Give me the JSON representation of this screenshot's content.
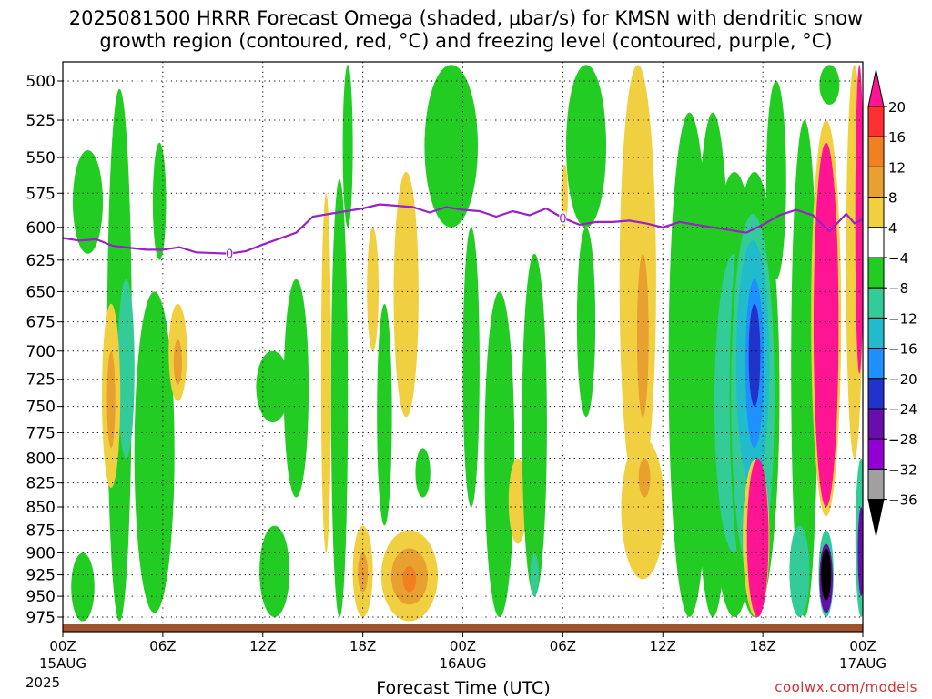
{
  "header": {
    "title_line1": "2025081500 HRRR Forecast Omega (shaded, μbar/s) for KMSN with dendritic snow",
    "title_line2": "growth region (contoured, red, °C) and freezing level (contoured, purple, °C)"
  },
  "footer": {
    "xlabel": "Forecast Time (UTC)",
    "credit": "coolwx.com/models",
    "year": "2025"
  },
  "chart_data": {
    "type": "heatmap",
    "title": "2025081500 HRRR Forecast Omega (shaded, μbar/s) for KMSN with dendritic snow growth region (contoured, red, °C) and freezing level (contoured, purple, °C)",
    "xlabel": "Forecast Time (UTC)",
    "ylabel": "",
    "x_unit": "forecast hour",
    "xlim": [
      0,
      48
    ],
    "ylim": [
      985,
      488
    ],
    "y_scale": "log-pressure",
    "grid": true,
    "y_ticks": [
      500,
      525,
      550,
      575,
      600,
      625,
      650,
      675,
      700,
      725,
      750,
      775,
      800,
      825,
      850,
      875,
      900,
      925,
      950,
      975
    ],
    "x_ticks": [
      {
        "hour": 0,
        "label": "00Z",
        "sub": "15AUG"
      },
      {
        "hour": 6,
        "label": "06Z",
        "sub": ""
      },
      {
        "hour": 12,
        "label": "12Z",
        "sub": ""
      },
      {
        "hour": 18,
        "label": "18Z",
        "sub": ""
      },
      {
        "hour": 24,
        "label": "00Z",
        "sub": "16AUG"
      },
      {
        "hour": 30,
        "label": "06Z",
        "sub": ""
      },
      {
        "hour": 36,
        "label": "12Z",
        "sub": ""
      },
      {
        "hour": 42,
        "label": "18Z",
        "sub": ""
      },
      {
        "hour": 48,
        "label": "00Z",
        "sub": "17AUG"
      }
    ],
    "colorbar": {
      "labels": [
        "20",
        "16",
        "12",
        "8",
        "4",
        "−4",
        "−8",
        "−12",
        "−16",
        "−20",
        "−24",
        "−28",
        "−32",
        "−36"
      ],
      "colors": [
        "#ff1493",
        "#ff3030",
        "#f08020",
        "#e8a030",
        "#f0d040",
        "#ffffff",
        "#22cc22",
        "#33cc99",
        "#22bbcc",
        "#1e90ff",
        "#2233cc",
        "#6a0dad",
        "#9400d3",
        "#a0a0a0",
        "#000000"
      ]
    },
    "freezing_level": {
      "color": "#9a20c8",
      "label": "0",
      "points": [
        [
          0,
          608
        ],
        [
          1,
          610
        ],
        [
          2,
          609
        ],
        [
          3,
          614
        ],
        [
          5,
          617
        ],
        [
          6,
          617
        ],
        [
          7,
          615
        ],
        [
          8,
          619
        ],
        [
          10,
          620
        ],
        [
          11,
          618
        ],
        [
          12,
          613
        ],
        [
          14,
          604
        ],
        [
          15,
          592
        ],
        [
          16,
          590
        ],
        [
          17,
          588
        ],
        [
          18,
          586
        ],
        [
          19,
          583
        ],
        [
          20,
          584
        ],
        [
          21,
          585
        ],
        [
          22,
          589
        ],
        [
          23,
          585
        ],
        [
          24,
          587
        ],
        [
          25,
          588
        ],
        [
          26,
          592
        ],
        [
          27,
          588
        ],
        [
          28,
          591
        ],
        [
          29,
          586
        ],
        [
          30,
          593
        ],
        [
          31,
          598
        ],
        [
          32,
          596
        ],
        [
          33,
          596
        ],
        [
          34,
          595
        ],
        [
          35,
          597
        ],
        [
          36,
          600
        ],
        [
          37,
          596
        ],
        [
          38,
          598
        ],
        [
          39,
          600
        ],
        [
          40,
          602
        ],
        [
          41,
          604
        ],
        [
          42,
          598
        ],
        [
          43,
          591
        ],
        [
          44,
          587
        ],
        [
          45,
          591
        ],
        [
          46,
          603
        ],
        [
          47,
          590
        ],
        [
          47.5,
          597
        ],
        [
          48,
          594
        ]
      ],
      "label_hours": [
        10,
        30
      ]
    },
    "shaded_regions": [
      {
        "value": -6,
        "hour": 1.5,
        "p_top": 545,
        "p_bottom": 620,
        "hw": 0.9
      },
      {
        "value": -6,
        "hour": 3.4,
        "p_top": 505,
        "p_bottom": 980,
        "hw": 0.75
      },
      {
        "value": -6,
        "hour": 1.2,
        "p_top": 900,
        "p_bottom": 980,
        "hw": 0.7
      },
      {
        "value": -6,
        "hour": 5.8,
        "p_top": 540,
        "p_bottom": 625,
        "hw": 0.4
      },
      {
        "value": -6,
        "hour": 5.5,
        "p_top": 650,
        "p_bottom": 970,
        "hw": 1.2
      },
      {
        "value": -10,
        "hour": 3.8,
        "p_top": 640,
        "p_bottom": 800,
        "hw": 0.5
      },
      {
        "value": 6,
        "hour": 2.9,
        "p_top": 660,
        "p_bottom": 830,
        "hw": 0.55
      },
      {
        "value": 10,
        "hour": 2.9,
        "p_top": 700,
        "p_bottom": 790,
        "hw": 0.25
      },
      {
        "value": 6,
        "hour": 6.9,
        "p_top": 660,
        "p_bottom": 745,
        "hw": 0.55
      },
      {
        "value": 10,
        "hour": 6.9,
        "p_top": 690,
        "p_bottom": 730,
        "hw": 0.25
      },
      {
        "value": -6,
        "hour": 12.7,
        "p_top": 870,
        "p_bottom": 975,
        "hw": 0.9
      },
      {
        "value": -6,
        "hour": 14,
        "p_top": 640,
        "p_bottom": 840,
        "hw": 0.75
      },
      {
        "value": -6,
        "hour": 12.6,
        "p_top": 700,
        "p_bottom": 765,
        "hw": 1.0
      },
      {
        "value": -6,
        "hour": 16.6,
        "p_top": 565,
        "p_bottom": 975,
        "hw": 0.5
      },
      {
        "value": 6,
        "hour": 15.8,
        "p_top": 575,
        "p_bottom": 900,
        "hw": 0.3
      },
      {
        "value": -6,
        "hour": 17.1,
        "p_top": 490,
        "p_bottom": 600,
        "hw": 0.3
      },
      {
        "value": 6,
        "hour": 18,
        "p_top": 870,
        "p_bottom": 975,
        "hw": 0.6
      },
      {
        "value": 10,
        "hour": 18,
        "p_top": 900,
        "p_bottom": 945,
        "hw": 0.3
      },
      {
        "value": 6,
        "hour": 18.6,
        "p_top": 600,
        "p_bottom": 700,
        "hw": 0.35
      },
      {
        "value": -6,
        "hour": 19.3,
        "p_top": 660,
        "p_bottom": 870,
        "hw": 0.45
      },
      {
        "value": 6,
        "hour": 20.6,
        "p_top": 560,
        "p_bottom": 760,
        "hw": 0.75
      },
      {
        "value": 6,
        "hour": 20.8,
        "p_top": 875,
        "p_bottom": 980,
        "hw": 1.7
      },
      {
        "value": 10,
        "hour": 20.8,
        "p_top": 895,
        "p_bottom": 960,
        "hw": 1.1
      },
      {
        "value": 14,
        "hour": 20.8,
        "p_top": 915,
        "p_bottom": 945,
        "hw": 0.4
      },
      {
        "value": -6,
        "hour": 21.6,
        "p_top": 790,
        "p_bottom": 840,
        "hw": 0.45
      },
      {
        "value": -6,
        "hour": 23.3,
        "p_top": 490,
        "p_bottom": 600,
        "hw": 1.6
      },
      {
        "value": -6,
        "hour": 24.5,
        "p_top": 600,
        "p_bottom": 850,
        "hw": 0.5
      },
      {
        "value": -6,
        "hour": 26.2,
        "p_top": 650,
        "p_bottom": 975,
        "hw": 0.9
      },
      {
        "value": 6,
        "hour": 27.3,
        "p_top": 800,
        "p_bottom": 890,
        "hw": 0.55
      },
      {
        "value": -6,
        "hour": 28.3,
        "p_top": 620,
        "p_bottom": 950,
        "hw": 0.75
      },
      {
        "value": -10,
        "hour": 28.3,
        "p_top": 900,
        "p_bottom": 950,
        "hw": 0.25
      },
      {
        "value": 6,
        "hour": 30.1,
        "p_top": 555,
        "p_bottom": 600,
        "hw": 0.2
      },
      {
        "value": -6,
        "hour": 31.4,
        "p_top": 490,
        "p_bottom": 600,
        "hw": 1.2
      },
      {
        "value": -6,
        "hour": 31.4,
        "p_top": 600,
        "p_bottom": 760,
        "hw": 0.55
      },
      {
        "value": 6,
        "hour": 34.5,
        "p_top": 490,
        "p_bottom": 840,
        "hw": 1.1
      },
      {
        "value": 6,
        "hour": 34.8,
        "p_top": 780,
        "p_bottom": 930,
        "hw": 1.3
      },
      {
        "value": 10,
        "hour": 34.8,
        "p_top": 620,
        "p_bottom": 760,
        "hw": 0.35
      },
      {
        "value": 10,
        "hour": 34.9,
        "p_top": 800,
        "p_bottom": 840,
        "hw": 0.35
      },
      {
        "value": -6,
        "hour": 37.6,
        "p_top": 520,
        "p_bottom": 975,
        "hw": 1.25
      },
      {
        "value": -6,
        "hour": 39,
        "p_top": 520,
        "p_bottom": 975,
        "hw": 1.1
      },
      {
        "value": -6,
        "hour": 40.3,
        "p_top": 560,
        "p_bottom": 975,
        "hw": 1.6
      },
      {
        "value": -10,
        "hour": 40.3,
        "p_top": 620,
        "p_bottom": 900,
        "hw": 1.2
      },
      {
        "value": -6,
        "hour": 42.8,
        "p_top": 500,
        "p_bottom": 640,
        "hw": 0.6
      },
      {
        "value": -6,
        "hour": 41.5,
        "p_top": 560,
        "p_bottom": 975,
        "hw": 1.5
      },
      {
        "value": -10,
        "hour": 41.4,
        "p_top": 590,
        "p_bottom": 930,
        "hw": 1.3
      },
      {
        "value": -14,
        "hour": 41.4,
        "p_top": 610,
        "p_bottom": 830,
        "hw": 1.0
      },
      {
        "value": -18,
        "hour": 41.5,
        "p_top": 640,
        "p_bottom": 790,
        "hw": 0.55
      },
      {
        "value": -22,
        "hour": 41.5,
        "p_top": 660,
        "p_bottom": 750,
        "hw": 0.35
      },
      {
        "value": 6,
        "hour": 41.6,
        "p_top": 800,
        "p_bottom": 975,
        "hw": 0.8
      },
      {
        "value": 18,
        "hour": 41.7,
        "p_top": 800,
        "p_bottom": 975,
        "hw": 0.65
      },
      {
        "value": -6,
        "hour": 44.5,
        "p_top": 525,
        "p_bottom": 975,
        "hw": 0.8
      },
      {
        "value": -10,
        "hour": 44.2,
        "p_top": 870,
        "p_bottom": 975,
        "hw": 0.6
      },
      {
        "value": 6,
        "hour": 45.8,
        "p_top": 525,
        "p_bottom": 860,
        "hw": 0.9
      },
      {
        "value": 18,
        "hour": 45.8,
        "p_top": 540,
        "p_bottom": 850,
        "hw": 0.75
      },
      {
        "value": -10,
        "hour": 45.8,
        "p_top": 875,
        "p_bottom": 975,
        "hw": 0.45
      },
      {
        "value": -26,
        "hour": 45.8,
        "p_top": 890,
        "p_bottom": 970,
        "hw": 0.4
      },
      {
        "value": -38,
        "hour": 45.8,
        "p_top": 895,
        "p_bottom": 955,
        "hw": 0.3
      },
      {
        "value": -6,
        "hour": 46,
        "p_top": 490,
        "p_bottom": 515,
        "hw": 0.6
      },
      {
        "value": 6,
        "hour": 47.5,
        "p_top": 490,
        "p_bottom": 800,
        "hw": 0.5
      },
      {
        "value": 18,
        "hour": 47.8,
        "p_top": 490,
        "p_bottom": 720,
        "hw": 0.25
      },
      {
        "value": -10,
        "hour": 47.9,
        "p_top": 800,
        "p_bottom": 975,
        "hw": 0.35
      },
      {
        "value": -26,
        "hour": 47.9,
        "p_top": 850,
        "p_bottom": 950,
        "hw": 0.2
      }
    ]
  }
}
